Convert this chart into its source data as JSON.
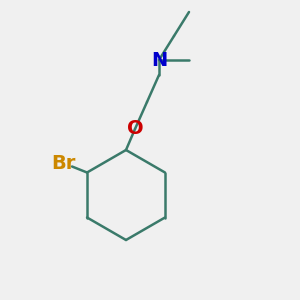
{
  "background_color": "#f0f0f0",
  "bond_color": "#3a7a6a",
  "N_color": "#0000cc",
  "O_color": "#cc0000",
  "Br_color": "#cc8800",
  "text_N": "N",
  "text_O": "O",
  "text_Br": "Br",
  "fig_width": 3.0,
  "fig_height": 3.0,
  "dpi": 100
}
